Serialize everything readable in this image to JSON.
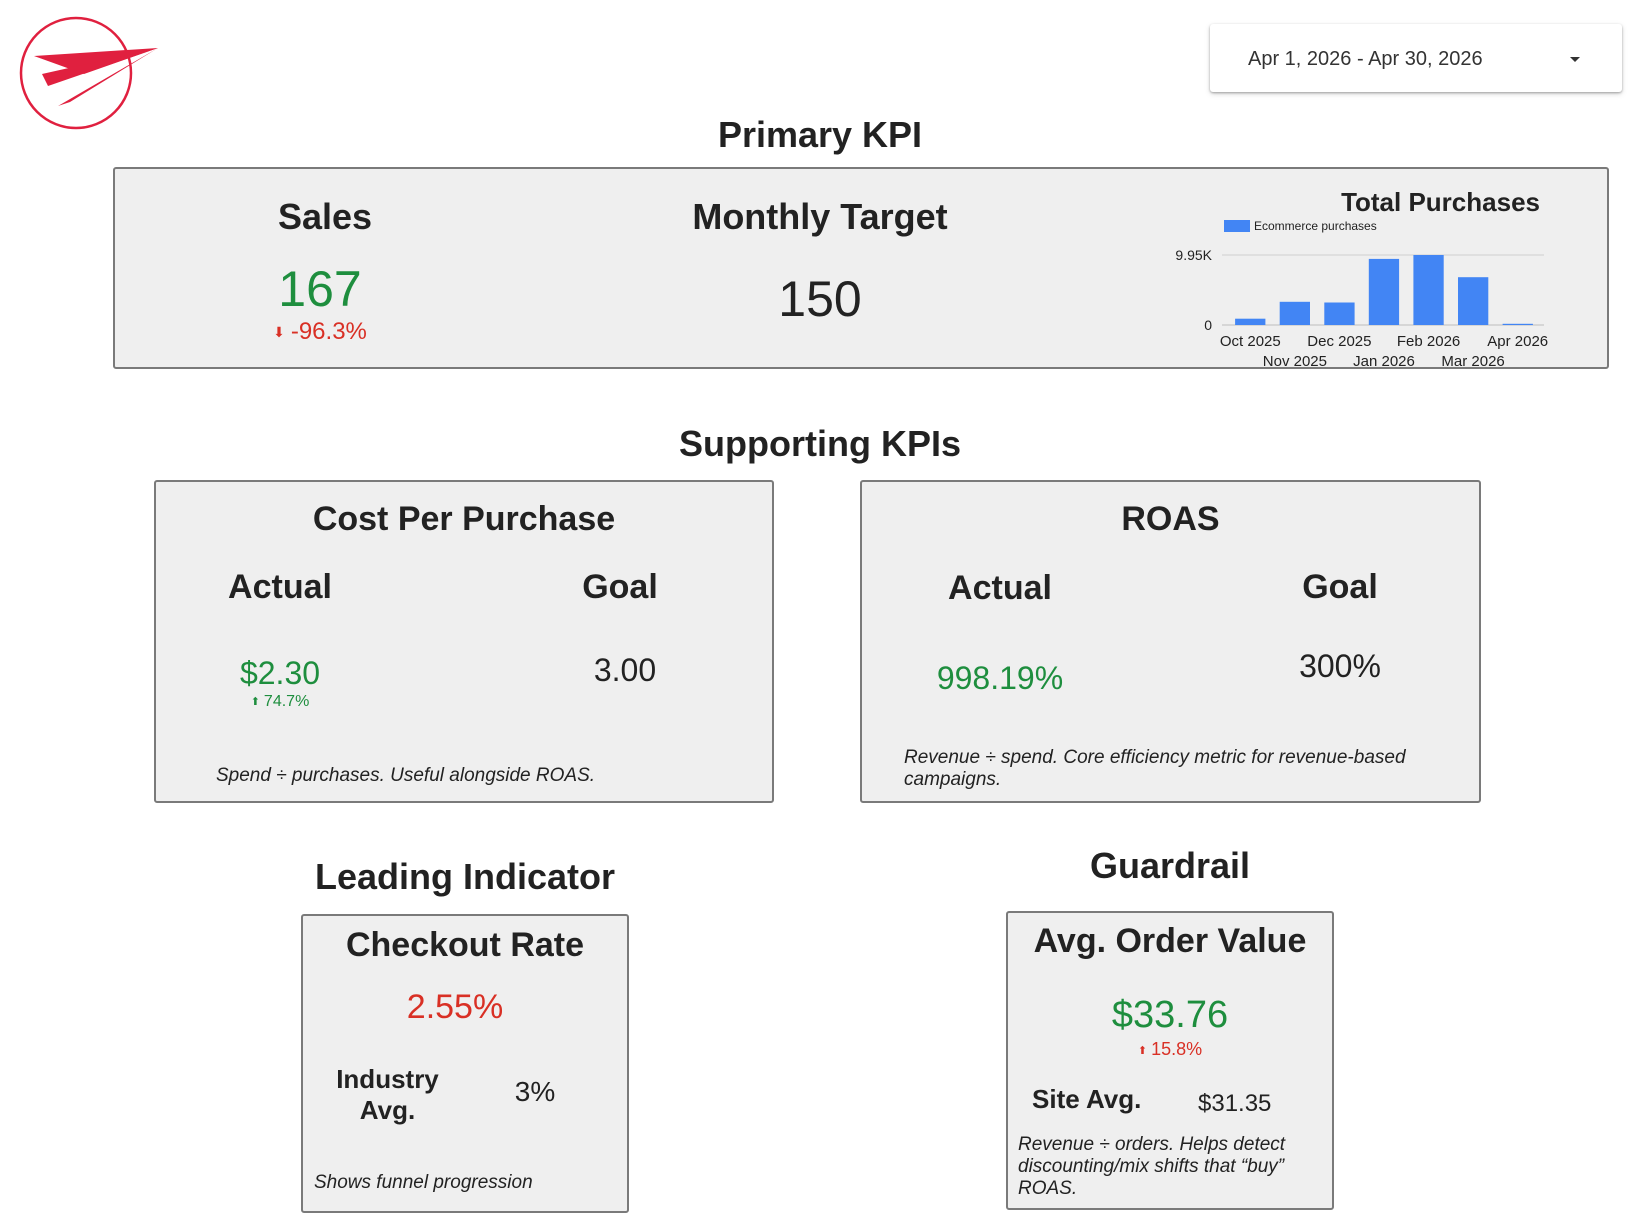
{
  "header": {
    "date_range": "Apr 1, 2026 - Apr 30, 2026",
    "logo_icon": "paper-plane-icon",
    "brand_color": "#e0203f"
  },
  "primary": {
    "section_title": "Primary KPI",
    "sales": {
      "label": "Sales",
      "value": "167",
      "delta": "-96.3%"
    },
    "target": {
      "label": "Monthly Target",
      "value": "150"
    },
    "purchases_chart": {
      "title": "Total Purchases",
      "legend": "Ecommerce purchases"
    }
  },
  "supporting": {
    "section_title": "Supporting KPIs",
    "cpp": {
      "title": "Cost Per Purchase",
      "actual_label": "Actual",
      "goal_label": "Goal",
      "actual_value": "$2.30",
      "actual_delta": "74.7%",
      "goal_value": "3.00",
      "note": "Spend ÷ purchases. Useful alongside ROAS."
    },
    "roas": {
      "title": "ROAS",
      "actual_label": "Actual",
      "goal_label": "Goal",
      "actual_value": "998.19%",
      "goal_value": "300%",
      "note": "Revenue ÷ spend. Core efficiency metric for revenue-based campaigns."
    }
  },
  "leading": {
    "section_title": "Leading Indicator",
    "title": "Checkout Rate",
    "value": "2.55%",
    "benchmark_label": "Industry Avg.",
    "benchmark_value": "3%",
    "note": "Shows funnel progression"
  },
  "guardrail": {
    "section_title": "Guardrail",
    "title": "Avg. Order Value",
    "value": "$33.76",
    "delta": "15.8%",
    "benchmark_label": "Site Avg.",
    "benchmark_value": "$31.35",
    "note": "Revenue ÷ orders. Helps detect discounting/mix shifts that “buy” ROAS."
  },
  "colors": {
    "positive": "#1e8e3e",
    "negative": "#d93025",
    "bar": "#4285f4"
  },
  "chart_data": {
    "type": "bar",
    "title": "Total Purchases",
    "categories": [
      "Oct 2025",
      "Nov 2025",
      "Dec 2025",
      "Jan 2026",
      "Feb 2026",
      "Mar 2026",
      "Apr 2026"
    ],
    "series": [
      {
        "name": "Ecommerce purchases",
        "values": [
          900,
          3300,
          3200,
          9400,
          9950,
          6800,
          167
        ]
      }
    ],
    "ytick_labels": [
      "0",
      "9.95K"
    ],
    "ylim": [
      0,
      9950
    ],
    "grid": false,
    "legend_position": "top-left"
  }
}
